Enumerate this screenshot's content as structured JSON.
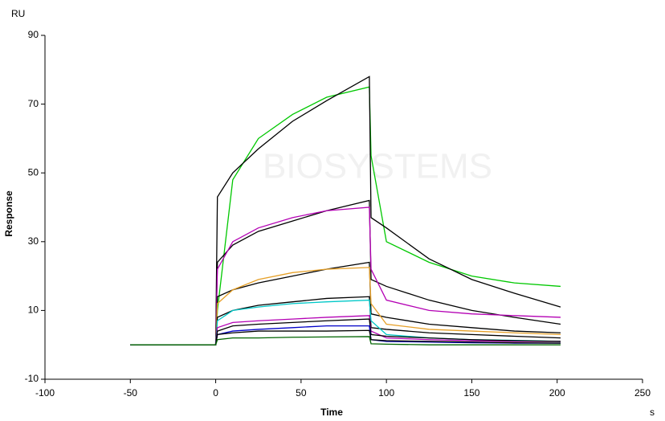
{
  "chart_data": {
    "type": "line",
    "watermark": "BIOSYSTEMS",
    "y_unit": "RU",
    "x_unit": "s",
    "ylabel": "Response",
    "xlabel": "Time",
    "xlim": [
      -100,
      250
    ],
    "xticks": [
      -100,
      -50,
      0,
      50,
      100,
      150,
      200,
      250
    ],
    "ylim": [
      -10,
      90
    ],
    "yticks": [
      -10,
      10,
      30,
      50,
      70,
      90
    ],
    "x": [
      -50,
      0,
      1,
      10,
      25,
      45,
      65,
      90,
      91,
      100,
      125,
      150,
      175,
      202
    ],
    "series": [
      {
        "color": "#00c800",
        "values": [
          0,
          0,
          10,
          48,
          60,
          67,
          72,
          75,
          55,
          30,
          24,
          20,
          18,
          17
        ]
      },
      {
        "color": "#000000",
        "values": [
          0,
          0,
          43,
          50,
          57,
          65,
          71,
          78,
          37,
          34,
          25,
          19,
          15,
          11
        ]
      },
      {
        "color": "#000000",
        "values": [
          0,
          0,
          24,
          29,
          33,
          36,
          39,
          42,
          19,
          17,
          13,
          10,
          8,
          6
        ]
      },
      {
        "color": "#b400b4",
        "values": [
          0,
          0,
          22,
          30,
          34,
          37,
          39,
          40,
          22,
          13,
          10,
          9,
          8.5,
          8
        ]
      },
      {
        "color": "#000000",
        "values": [
          0,
          0,
          14,
          16,
          18,
          20,
          22,
          24,
          9,
          8,
          6,
          5,
          4,
          3.5
        ]
      },
      {
        "color": "#e6a028",
        "values": [
          0,
          0,
          12,
          16,
          19,
          21,
          22,
          22.5,
          12,
          6,
          4.5,
          4,
          3.5,
          3
        ]
      },
      {
        "color": "#000000",
        "values": [
          0,
          0,
          8,
          10,
          11.5,
          12.5,
          13.5,
          14,
          5,
          4.5,
          3.5,
          3,
          2.5,
          2
        ]
      },
      {
        "color": "#00c8c8",
        "values": [
          0,
          0,
          7,
          10,
          11,
          12,
          12.5,
          13,
          7,
          3,
          2,
          1.5,
          1.3,
          1
        ]
      },
      {
        "color": "#b400b4",
        "values": [
          0,
          0,
          5,
          6.5,
          7,
          7.5,
          8,
          8.5,
          4,
          2,
          1.5,
          1.2,
          1,
          1
        ]
      },
      {
        "color": "#000000",
        "values": [
          0,
          0,
          4,
          5.5,
          6,
          6.5,
          7,
          7.5,
          3,
          2.5,
          2,
          1.5,
          1.2,
          1
        ]
      },
      {
        "color": "#0000c8",
        "values": [
          0,
          0,
          3,
          4,
          4.5,
          5,
          5.5,
          5.5,
          1.5,
          1,
          0.8,
          0.6,
          0.5,
          0.5
        ]
      },
      {
        "color": "#000000",
        "values": [
          0,
          0,
          3,
          3.5,
          4,
          4,
          4,
          4.2,
          1.5,
          1.2,
          1,
          0.8,
          0.6,
          0.5
        ]
      },
      {
        "color": "#006400",
        "values": [
          0,
          0,
          1.5,
          2,
          2,
          2.2,
          2.3,
          2.4,
          0.3,
          0.2,
          0,
          0,
          0,
          0
        ]
      }
    ]
  }
}
